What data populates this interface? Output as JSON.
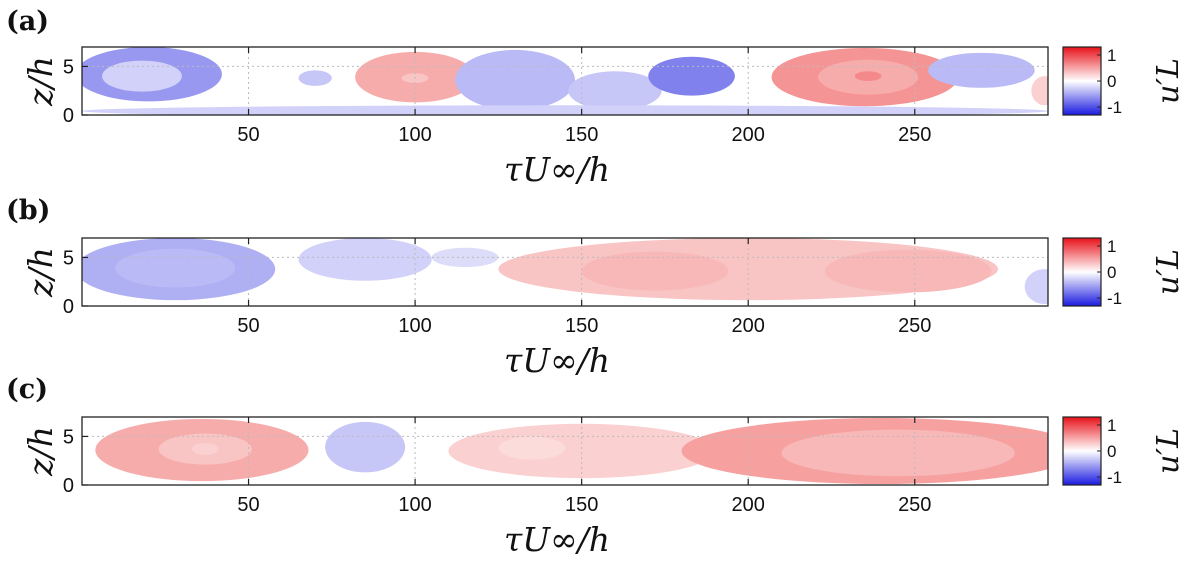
{
  "chart_data": [
    {
      "type": "heatmap",
      "panel_label": "(a)",
      "xlabel": "τU∞/h",
      "ylabel": "z/h",
      "xlim": [
        0,
        290
      ],
      "ylim": [
        0,
        7
      ],
      "xticks": [
        50,
        100,
        150,
        200,
        250
      ],
      "yticks": [
        0,
        5
      ],
      "colorbar": {
        "label": "u′L",
        "range": [
          -1,
          1
        ],
        "ticks": [
          "1",
          "0",
          "-1"
        ],
        "cmap": "blue-white-red"
      },
      "regions": [
        {
          "x": 20,
          "z": 4.2,
          "rx": 22,
          "rz": 2.8,
          "value": -0.45
        },
        {
          "x": 18,
          "z": 4.0,
          "rx": 12,
          "rz": 1.6,
          "value": -0.2
        },
        {
          "x": 70,
          "z": 3.8,
          "rx": 5,
          "rz": 0.8,
          "value": -0.25
        },
        {
          "x": 100,
          "z": 3.9,
          "rx": 18,
          "rz": 2.6,
          "value": 0.35
        },
        {
          "x": 100,
          "z": 3.8,
          "rx": 4,
          "rz": 0.5,
          "value": 0.25
        },
        {
          "x": 130,
          "z": 3.6,
          "rx": 18,
          "rz": 3.1,
          "value": -0.3
        },
        {
          "x": 160,
          "z": 2.5,
          "rx": 14,
          "rz": 2.0,
          "value": -0.25
        },
        {
          "x": 183,
          "z": 4.0,
          "rx": 13,
          "rz": 2.0,
          "value": -0.55
        },
        {
          "x": 235,
          "z": 3.9,
          "rx": 28,
          "rz": 3.0,
          "value": 0.45
        },
        {
          "x": 236,
          "z": 3.9,
          "rx": 15,
          "rz": 1.8,
          "value": 0.35
        },
        {
          "x": 236,
          "z": 4.0,
          "rx": 4,
          "rz": 0.5,
          "value": 0.5
        },
        {
          "x": 270,
          "z": 4.6,
          "rx": 16,
          "rz": 1.8,
          "value": -0.3
        },
        {
          "x": 289,
          "z": 2.5,
          "rx": 4,
          "rz": 1.5,
          "value": 0.2
        },
        {
          "x": 145,
          "z": 0.4,
          "rx": 145,
          "rz": 0.6,
          "value": -0.2
        }
      ]
    },
    {
      "type": "heatmap",
      "panel_label": "(b)",
      "xlabel": "τU∞/h",
      "ylabel": "z/h",
      "xlim": [
        0,
        290
      ],
      "ylim": [
        0,
        7
      ],
      "xticks": [
        50,
        100,
        150,
        200,
        250
      ],
      "yticks": [
        0,
        5
      ],
      "colorbar": {
        "label": "u′L",
        "range": [
          -1,
          1
        ],
        "ticks": [
          "1",
          "0",
          "-1"
        ],
        "cmap": "blue-white-red"
      },
      "regions": [
        {
          "x": 28,
          "z": 3.8,
          "rx": 30,
          "rz": 3.2,
          "value": -0.35
        },
        {
          "x": 28,
          "z": 3.9,
          "rx": 18,
          "rz": 2.0,
          "value": -0.3
        },
        {
          "x": 85,
          "z": 4.8,
          "rx": 20,
          "rz": 2.2,
          "value": -0.2
        },
        {
          "x": 115,
          "z": 5.0,
          "rx": 10,
          "rz": 1.0,
          "value": -0.15
        },
        {
          "x": 200,
          "z": 3.8,
          "rx": 75,
          "rz": 3.2,
          "value": 0.25
        },
        {
          "x": 172,
          "z": 3.6,
          "rx": 22,
          "rz": 2.0,
          "value": 0.3
        },
        {
          "x": 248,
          "z": 3.6,
          "rx": 25,
          "rz": 2.2,
          "value": 0.3
        },
        {
          "x": 289,
          "z": 2.0,
          "rx": 6,
          "rz": 1.8,
          "value": -0.2
        }
      ]
    },
    {
      "type": "heatmap",
      "panel_label": "(c)",
      "xlabel": "τU∞/h",
      "ylabel": "z/h",
      "xlim": [
        0,
        290
      ],
      "ylim": [
        0,
        7
      ],
      "xticks": [
        50,
        100,
        150,
        200,
        250
      ],
      "yticks": [
        0,
        5
      ],
      "colorbar": {
        "label": "u′L",
        "range": [
          -1,
          1
        ],
        "ticks": [
          "1",
          "0",
          "-1"
        ],
        "cmap": "blue-white-red"
      },
      "regions": [
        {
          "x": 36,
          "z": 3.6,
          "rx": 32,
          "rz": 3.2,
          "value": 0.35
        },
        {
          "x": 37,
          "z": 3.7,
          "rx": 14,
          "rz": 1.6,
          "value": 0.25
        },
        {
          "x": 37,
          "z": 3.7,
          "rx": 4,
          "rz": 0.6,
          "value": 0.2
        },
        {
          "x": 85,
          "z": 3.9,
          "rx": 12,
          "rz": 2.6,
          "value": -0.25
        },
        {
          "x": 150,
          "z": 3.5,
          "rx": 40,
          "rz": 2.8,
          "value": 0.2
        },
        {
          "x": 135,
          "z": 3.8,
          "rx": 10,
          "rz": 1.2,
          "value": 0.15
        },
        {
          "x": 240,
          "z": 3.5,
          "rx": 60,
          "rz": 3.4,
          "value": 0.4
        },
        {
          "x": 245,
          "z": 3.3,
          "rx": 35,
          "rz": 2.4,
          "value": 0.3
        },
        {
          "x": 252,
          "z": 3.3,
          "rx": 18,
          "rz": 1.6,
          "value": 0.3
        }
      ]
    }
  ]
}
